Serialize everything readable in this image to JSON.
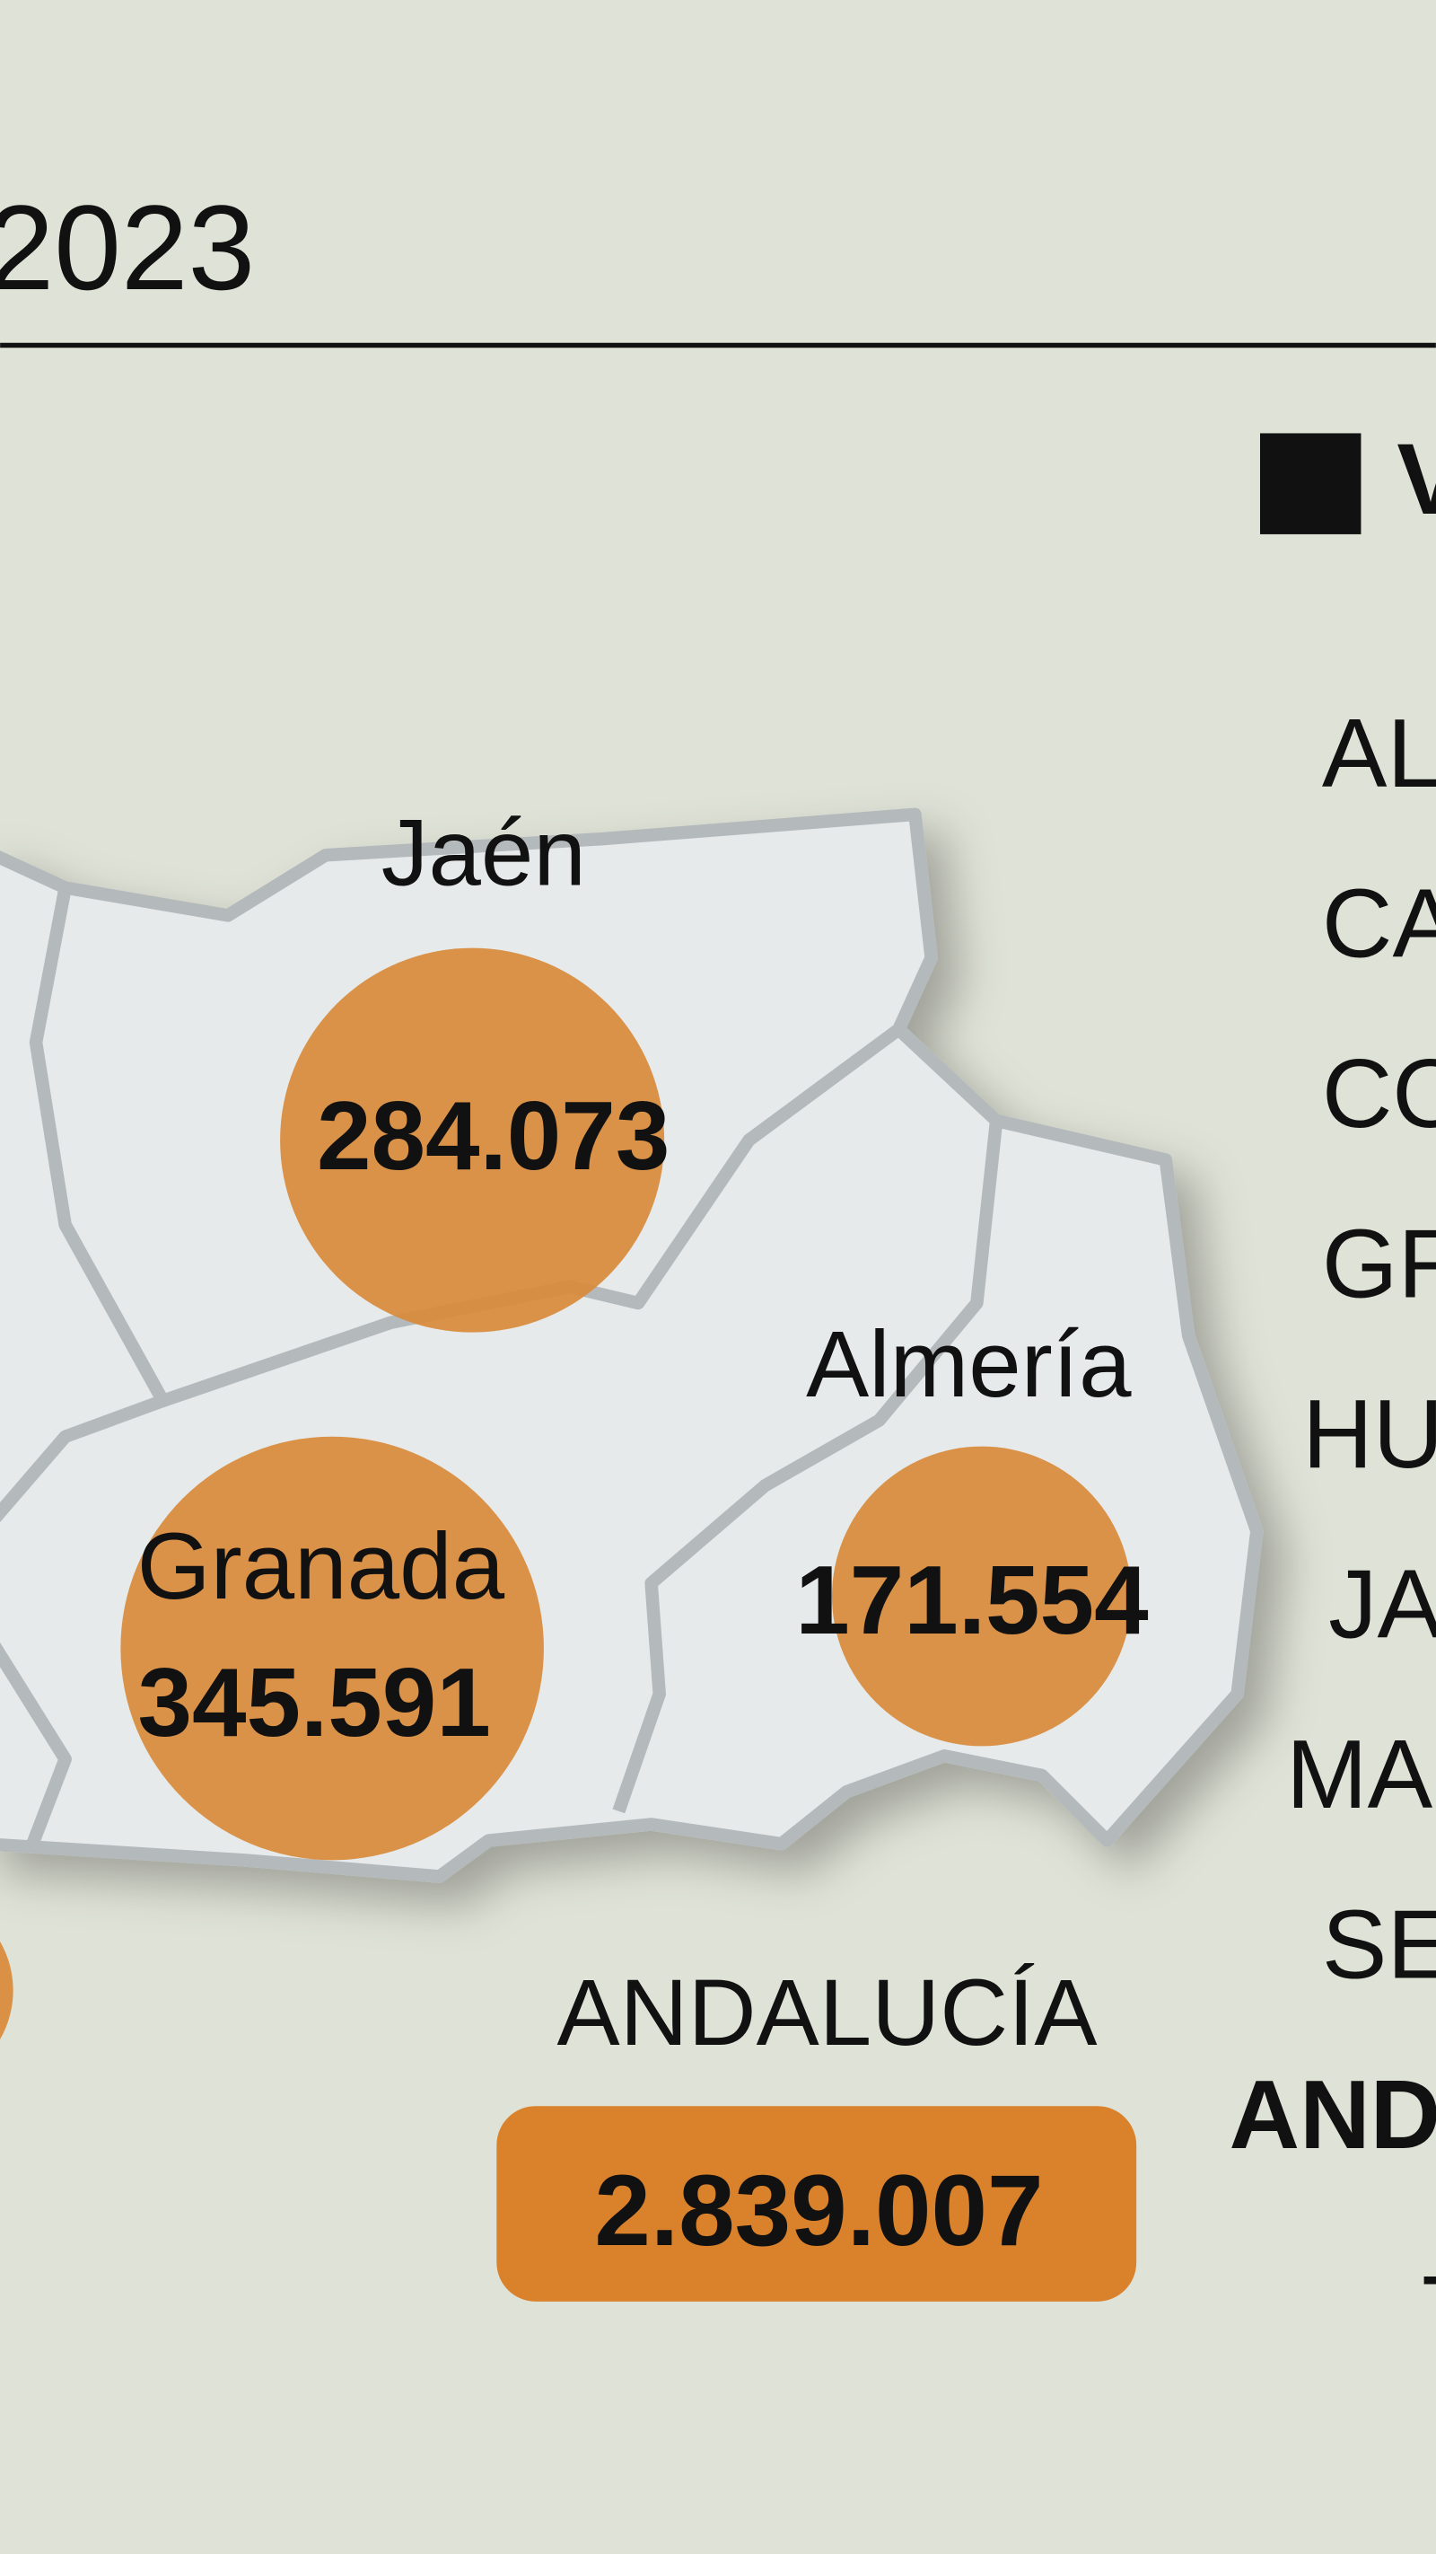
{
  "title": "2023",
  "legend": {
    "label": "V"
  },
  "table": {
    "rows": [
      "AL",
      "CA",
      "CO",
      "GR",
      "HU",
      "JA",
      "MA",
      "SE",
      "AND",
      "-"
    ]
  },
  "map": {
    "regions": [
      {
        "name": "Jaén",
        "value": "284.073"
      },
      {
        "name": "Almería",
        "value": "171.554"
      },
      {
        "name": "Granada",
        "value": "345.591"
      }
    ],
    "total": {
      "name": "ANDALUCÍA",
      "value": "2.839.007"
    }
  }
}
